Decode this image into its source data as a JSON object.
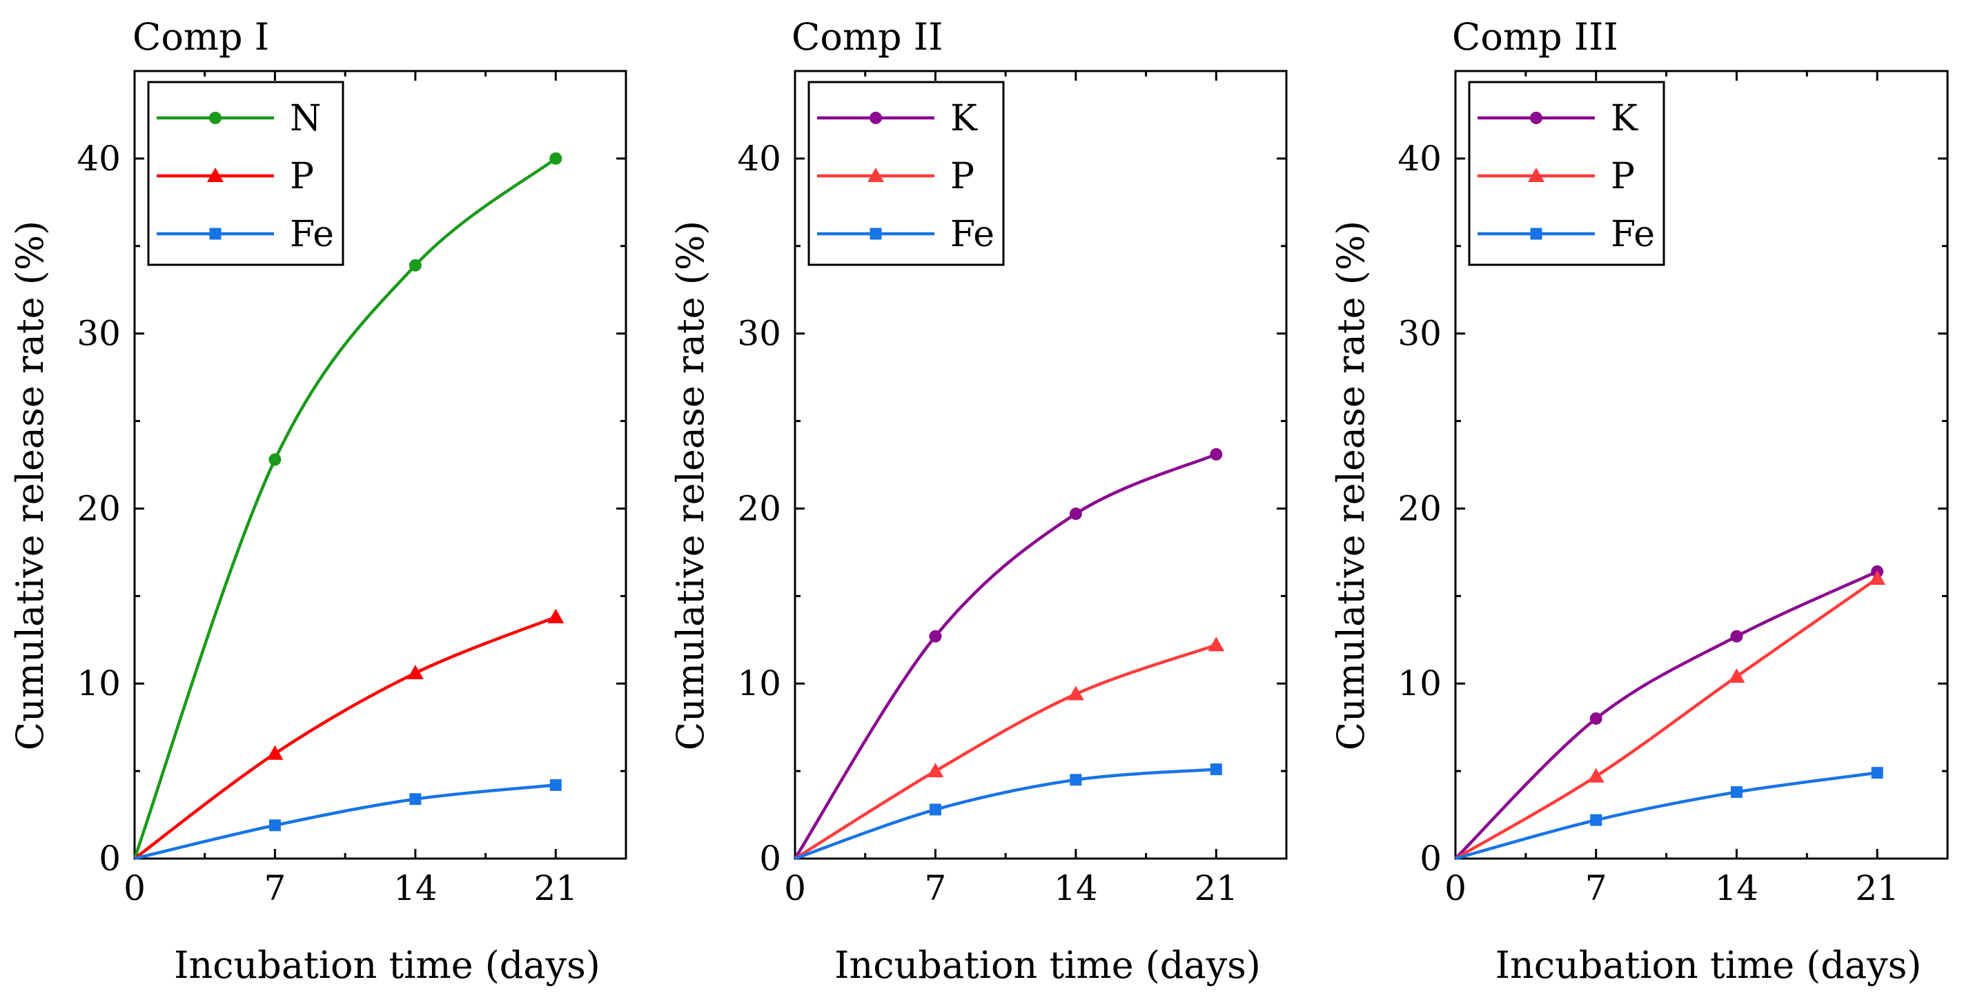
{
  "chart_data": [
    {
      "type": "line",
      "title": "Comp I",
      "xlabel": "Incubation time (days)",
      "ylabel": "Cumulative release rate (%)",
      "x": [
        0,
        7,
        14,
        21
      ],
      "xticks": [
        0,
        7,
        14,
        21
      ],
      "yticks": [
        0,
        10,
        20,
        30,
        40
      ],
      "xlim": [
        0,
        24.5
      ],
      "ylim": [
        0,
        45
      ],
      "legend_position": "top-left",
      "series": [
        {
          "name": "N",
          "color": "#1a9a1a",
          "marker": "circle",
          "values": [
            0,
            22.8,
            33.9,
            40.0
          ]
        },
        {
          "name": "P",
          "color": "#ff0000",
          "marker": "triangle",
          "values": [
            0,
            6.0,
            10.6,
            13.8
          ]
        },
        {
          "name": "Fe",
          "color": "#1874e6",
          "marker": "square",
          "values": [
            0,
            1.9,
            3.4,
            4.2
          ]
        }
      ]
    },
    {
      "type": "line",
      "title": "Comp II",
      "xlabel": "Incubation time (days)",
      "ylabel": "Cumulative release rate (%)",
      "x": [
        0,
        7,
        14,
        21
      ],
      "xticks": [
        0,
        7,
        14,
        21
      ],
      "yticks": [
        0,
        10,
        20,
        30,
        40
      ],
      "xlim": [
        0,
        24.5
      ],
      "ylim": [
        0,
        45
      ],
      "legend_position": "top-left",
      "series": [
        {
          "name": "K",
          "color": "#8b0a8f",
          "marker": "circle",
          "values": [
            0,
            12.7,
            19.7,
            23.1
          ]
        },
        {
          "name": "P",
          "color": "#ff3b3b",
          "marker": "triangle",
          "values": [
            0,
            5.0,
            9.4,
            12.2
          ]
        },
        {
          "name": "Fe",
          "color": "#1874e6",
          "marker": "square",
          "values": [
            0,
            2.8,
            4.5,
            5.1
          ]
        }
      ]
    },
    {
      "type": "line",
      "title": "Comp III",
      "xlabel": "Incubation time (days)",
      "ylabel": "Cumulative release rate (%)",
      "x": [
        0,
        7,
        14,
        21
      ],
      "xticks": [
        0,
        7,
        14,
        21
      ],
      "yticks": [
        0,
        10,
        20,
        30,
        40
      ],
      "xlim": [
        0,
        24.5
      ],
      "ylim": [
        0,
        45
      ],
      "legend_position": "top-left",
      "series": [
        {
          "name": "K",
          "color": "#8b0a8f",
          "marker": "circle",
          "values": [
            0,
            8.0,
            12.7,
            16.4
          ]
        },
        {
          "name": "P",
          "color": "#ff3b3b",
          "marker": "triangle",
          "values": [
            0,
            4.7,
            10.4,
            16.0
          ]
        },
        {
          "name": "Fe",
          "color": "#1874e6",
          "marker": "square",
          "values": [
            0,
            2.2,
            3.8,
            4.9
          ]
        }
      ]
    }
  ]
}
